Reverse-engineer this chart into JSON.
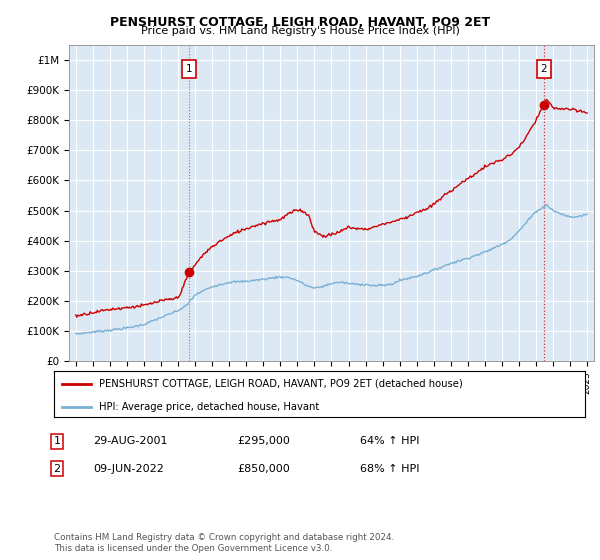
{
  "title": "PENSHURST COTTAGE, LEIGH ROAD, HAVANT, PO9 2ET",
  "subtitle": "Price paid vs. HM Land Registry's House Price Index (HPI)",
  "ylim": [
    0,
    1050000
  ],
  "ytick_vals": [
    0,
    100000,
    200000,
    300000,
    400000,
    500000,
    600000,
    700000,
    800000,
    900000,
    1000000
  ],
  "ytick_labels": [
    "£0",
    "£100K",
    "£200K",
    "£300K",
    "£400K",
    "£500K",
    "£600K",
    "£700K",
    "£800K",
    "£900K",
    "£1M"
  ],
  "xlim": [
    1994.6,
    2025.4
  ],
  "plot_bg_color": "#dce9f5",
  "grid_color": "#ffffff",
  "red_color": "#cc0000",
  "blue_color": "#7ab0d4",
  "sale1_x": 2001.66,
  "sale1_y": 295000,
  "sale2_x": 2022.44,
  "sale2_y": 850000,
  "legend_line1": "PENSHURST COTTAGE, LEIGH ROAD, HAVANT, PO9 2ET (detached house)",
  "legend_line2": "HPI: Average price, detached house, Havant",
  "table_row1": [
    "1",
    "29-AUG-2001",
    "£295,000",
    "64% ↑ HPI"
  ],
  "table_row2": [
    "2",
    "09-JUN-2022",
    "£850,000",
    "68% ↑ HPI"
  ],
  "footer": "Contains HM Land Registry data © Crown copyright and database right 2024.\nThis data is licensed under the Open Government Licence v3.0."
}
